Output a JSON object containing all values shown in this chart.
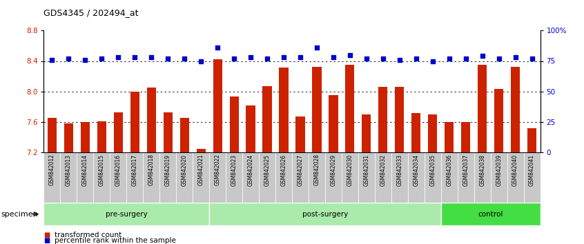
{
  "title": "GDS4345 / 202494_at",
  "samples": [
    "GSM842012",
    "GSM842013",
    "GSM842014",
    "GSM842015",
    "GSM842016",
    "GSM842017",
    "GSM842018",
    "GSM842019",
    "GSM842020",
    "GSM842021",
    "GSM842022",
    "GSM842023",
    "GSM842024",
    "GSM842025",
    "GSM842026",
    "GSM842027",
    "GSM842028",
    "GSM842029",
    "GSM842030",
    "GSM842031",
    "GSM842032",
    "GSM842033",
    "GSM842034",
    "GSM842035",
    "GSM842036",
    "GSM842037",
    "GSM842038",
    "GSM842039",
    "GSM842040",
    "GSM842041"
  ],
  "bar_values": [
    7.65,
    7.58,
    7.6,
    7.61,
    7.73,
    8.0,
    8.05,
    7.73,
    7.65,
    7.25,
    8.42,
    7.93,
    7.82,
    8.07,
    8.31,
    7.67,
    8.32,
    7.95,
    8.35,
    7.7,
    8.06,
    8.06,
    7.72,
    7.7,
    7.6,
    7.6,
    8.35,
    8.03,
    8.32,
    7.52
  ],
  "percentile_values": [
    76,
    77,
    76,
    77,
    78,
    78,
    78,
    77,
    77,
    75,
    86,
    77,
    78,
    77,
    78,
    78,
    86,
    78,
    80,
    77,
    77,
    76,
    77,
    75,
    77,
    77,
    79,
    77,
    78,
    77
  ],
  "groups": [
    {
      "label": "pre-surgery",
      "start": 0,
      "end": 10,
      "color": "#aaeaaa"
    },
    {
      "label": "post-surgery",
      "start": 10,
      "end": 24,
      "color": "#aaeaaa"
    },
    {
      "label": "control",
      "start": 24,
      "end": 30,
      "color": "#44dd44"
    }
  ],
  "ylim_left": [
    7.2,
    8.8
  ],
  "ylim_right": [
    0,
    100
  ],
  "yticks_left": [
    7.2,
    7.6,
    8.0,
    8.4,
    8.8
  ],
  "yticks_right_vals": [
    0,
    25,
    50,
    75,
    100
  ],
  "yticks_right_labels": [
    "0",
    "25",
    "50",
    "75",
    "100%"
  ],
  "bar_color": "#cc2200",
  "dot_color": "#0000cc",
  "grid_lines": [
    7.6,
    8.0,
    8.4
  ],
  "background_color": "#ffffff",
  "bar_width": 0.55,
  "tick_bg_color": "#c8c8c8",
  "legend_items": [
    {
      "label": "transformed count",
      "color": "#cc2200"
    },
    {
      "label": "percentile rank within the sample",
      "color": "#0000cc"
    }
  ],
  "specimen_label": "specimen"
}
